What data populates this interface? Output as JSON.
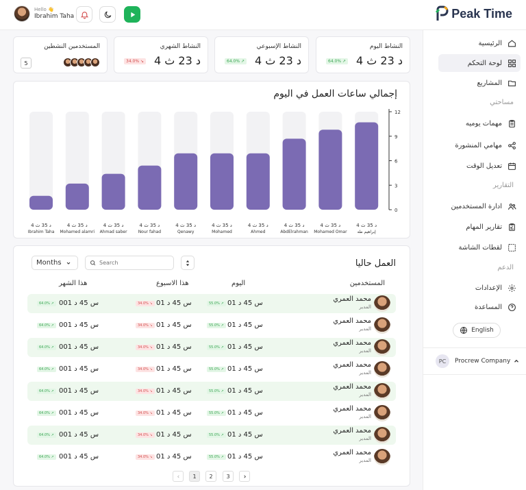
{
  "header": {
    "greeting": "Hello 👋",
    "user_name": "Ibrahim Taha",
    "brand": "Peak Time",
    "icons": [
      "bell-icon",
      "moon-icon",
      "play-icon"
    ]
  },
  "sidebar": {
    "items": [
      {
        "label": "الرئيسية",
        "icon": "home-icon"
      },
      {
        "label": "لوحة التحكم",
        "icon": "grid-icon",
        "active": true
      },
      {
        "label": "المشاريع",
        "icon": "folder-icon"
      }
    ],
    "section_workspace": "مساحتي",
    "workspace_items": [
      {
        "label": "مهمات يوميه",
        "icon": "clipboard-icon"
      },
      {
        "label": "مهامي المنشورة",
        "icon": "share-icon"
      },
      {
        "label": "تعديل الوقت",
        "icon": "calendar-icon"
      }
    ],
    "section_reports": "التقارير",
    "report_items": [
      {
        "label": "ادارة المستخدمين",
        "icon": "users-icon"
      },
      {
        "label": "تقارير المهام",
        "icon": "report-icon"
      },
      {
        "label": "لقطات الشاشة",
        "icon": "screenshot-icon"
      }
    ],
    "section_support": "الدعم",
    "support_items": [
      {
        "label": "الإعدادات",
        "icon": "gear-icon"
      },
      {
        "label": "المساعدة",
        "icon": "help-icon"
      }
    ],
    "language_button": "English",
    "company_initials": "PC",
    "company_name": "Procrew Company"
  },
  "stats": [
    {
      "title": "النشاط اليوم",
      "value": "4 د 23 ث",
      "badge": "64.0% ↗",
      "badge_color": "green"
    },
    {
      "title": "النشاط الإسبوعي",
      "value": "4 د 23 ث",
      "badge": "64.0% ↗",
      "badge_color": "green"
    },
    {
      "title": "النشاط الشهري",
      "value": "4 د 23 ث",
      "badge": "34.0% ↘",
      "badge_color": "red"
    },
    {
      "title": "المستخدمين النشطين",
      "value": "5"
    }
  ],
  "chart_data": {
    "type": "bar",
    "title": "إجمالي ساعات العمل في اليوم",
    "categories": [
      "إبراهيم طه",
      "Mohamed Omar",
      "AbdElrahman",
      "Ahmed",
      "Mohamed",
      "Qenawy",
      "Nour fahad",
      "Ahmad saber",
      "Mohamed alamri",
      "Ibrahim Taha"
    ],
    "values": [
      10.7,
      9.8,
      8.7,
      6.9,
      6.9,
      6.9,
      5.4,
      4.4,
      3.2,
      1.7
    ],
    "bar_value_label": "4 د 35 ث",
    "ylim": [
      0,
      12
    ],
    "yticks": [
      0,
      3,
      6,
      9,
      12
    ],
    "bar_color": "#7b6bb3",
    "track_color": "#f2f2f4"
  },
  "table": {
    "title": "العمل حاليا",
    "period_select": "Months",
    "search_placeholder": "Search",
    "headers": {
      "user": "المستخدمين",
      "today": "اليوم",
      "week": "هذا الاسبوع",
      "month": "هذا الشهر"
    },
    "rows": [
      {
        "name": "محمد العمري",
        "role": "المدير",
        "today": "01 س 45 د",
        "today_badge": "55.0% ↗",
        "week": "01 س 45 د",
        "week_badge": "34.0% ↘",
        "month": "001 س 45 د",
        "month_badge": "64.0% ↗"
      },
      {
        "name": "محمد العمري",
        "role": "المدير",
        "today": "01 س 45 د",
        "today_badge": "55.0% ↗",
        "week": "01 س 45 د",
        "week_badge": "34.0% ↘",
        "month": "001 س 45 د",
        "month_badge": "64.0% ↗"
      },
      {
        "name": "محمد العمري",
        "role": "المدير",
        "today": "01 س 45 د",
        "today_badge": "55.0% ↗",
        "week": "01 س 45 د",
        "week_badge": "34.0% ↘",
        "month": "001 س 45 د",
        "month_badge": "64.0% ↗"
      },
      {
        "name": "محمد العمري",
        "role": "المدير",
        "today": "01 س 45 د",
        "today_badge": "55.0% ↗",
        "week": "01 س 45 د",
        "week_badge": "34.0% ↘",
        "month": "001 س 45 د",
        "month_badge": "64.0% ↗"
      },
      {
        "name": "محمد العمري",
        "role": "المدير",
        "today": "01 س 45 د",
        "today_badge": "55.0% ↗",
        "week": "01 س 45 د",
        "week_badge": "34.0% ↘",
        "month": "001 س 45 د",
        "month_badge": "64.0% ↗"
      },
      {
        "name": "محمد العمري",
        "role": "المدير",
        "today": "01 س 45 د",
        "today_badge": "55.0% ↗",
        "week": "01 س 45 د",
        "week_badge": "34.0% ↘",
        "month": "001 س 45 د",
        "month_badge": "64.0% ↗"
      },
      {
        "name": "محمد العمري",
        "role": "المدير",
        "today": "01 س 45 د",
        "today_badge": "55.0% ↗",
        "week": "01 س 45 د",
        "week_badge": "34.0% ↘",
        "month": "001 س 45 د",
        "month_badge": "64.0% ↗"
      },
      {
        "name": "محمد العمري",
        "role": "المدير",
        "today": "01 س 45 د",
        "today_badge": "55.0% ↗",
        "week": "01 س 45 د",
        "week_badge": "34.0% ↘",
        "month": "001 س 45 د",
        "month_badge": "64.0% ↗"
      }
    ]
  },
  "pagination": {
    "pages": [
      "1",
      "2",
      "3"
    ],
    "current": "1"
  },
  "colors": {
    "accent": "#7b6bb3",
    "green": "#1fb35a",
    "row_alt": "#eef8ee"
  }
}
